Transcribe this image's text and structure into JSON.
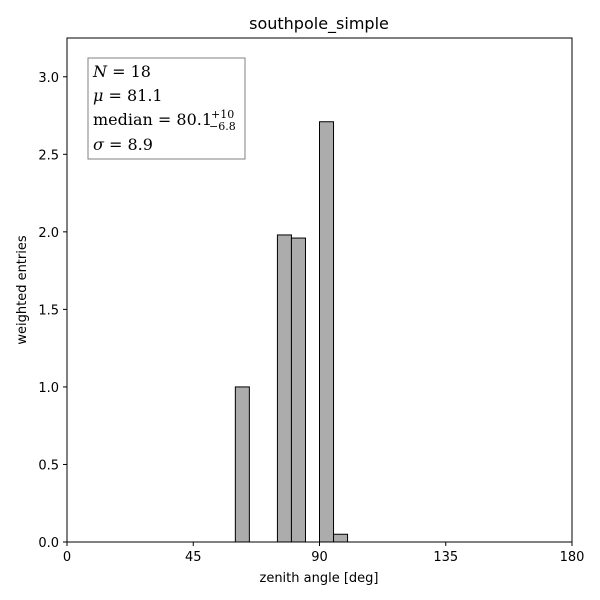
{
  "chart_data": {
    "type": "bar",
    "title": "southpole_simple",
    "xlabel": "zenith angle [deg]",
    "ylabel": "weighted entries",
    "xlim": [
      0,
      180
    ],
    "ylim": [
      0,
      3.25
    ],
    "xticks": [
      0,
      45,
      90,
      135,
      180
    ],
    "yticks": [
      0.0,
      0.5,
      1.0,
      1.5,
      2.0,
      2.5,
      3.0
    ],
    "bin_width": 5,
    "bars": [
      {
        "x0": 60,
        "x1": 65,
        "value": 1.0
      },
      {
        "x0": 75,
        "x1": 80,
        "value": 1.98
      },
      {
        "x0": 80,
        "x1": 85,
        "value": 1.96
      },
      {
        "x0": 90,
        "x1": 95,
        "value": 2.71
      },
      {
        "x0": 95,
        "x1": 100,
        "value": 0.05
      }
    ],
    "bar_color": "#acacac",
    "edge_color": "#000000",
    "grid": false,
    "stats_box": {
      "position": "top-left",
      "N_label": "N",
      "N_value": "18",
      "mu_label": "μ",
      "mu_value": "81.1",
      "median_label": "median",
      "median_value": "80.1",
      "median_plus": "+10",
      "median_minus": "−6.8",
      "sigma_label": "σ",
      "sigma_value": "8.9"
    }
  }
}
